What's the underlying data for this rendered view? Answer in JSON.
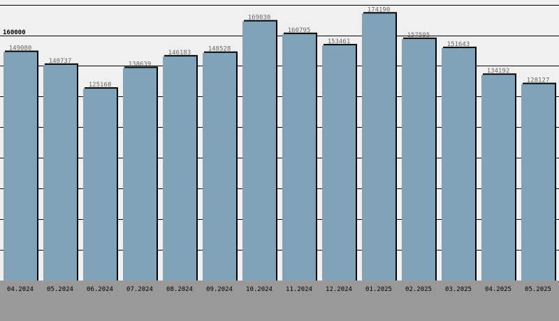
{
  "chart_data": {
    "type": "bar",
    "title": "",
    "xlabel": "",
    "ylabel": "",
    "categories": [
      "04.2024",
      "05.2024",
      "06.2024",
      "07.2024",
      "08.2024",
      "09.2024",
      "10.2024",
      "11.2024",
      "12.2024",
      "01.2025",
      "02.2025",
      "03.2025",
      "04.2025",
      "05.2025"
    ],
    "values": [
      149080,
      140737,
      125168,
      138639,
      146183,
      148528,
      169030,
      160795,
      153461,
      174190,
      157595,
      151643,
      134192,
      128127
    ],
    "ylim": [
      0,
      183000
    ],
    "reference_line": {
      "value": 160000,
      "label": "160000"
    },
    "grid": true,
    "legend": "none",
    "colors": {
      "bar": "#7fa3b8",
      "bar_shadow": "#000000",
      "plot_bg": "#f0f0f0",
      "footer_bg": "#999999",
      "grid": "#000000"
    }
  }
}
